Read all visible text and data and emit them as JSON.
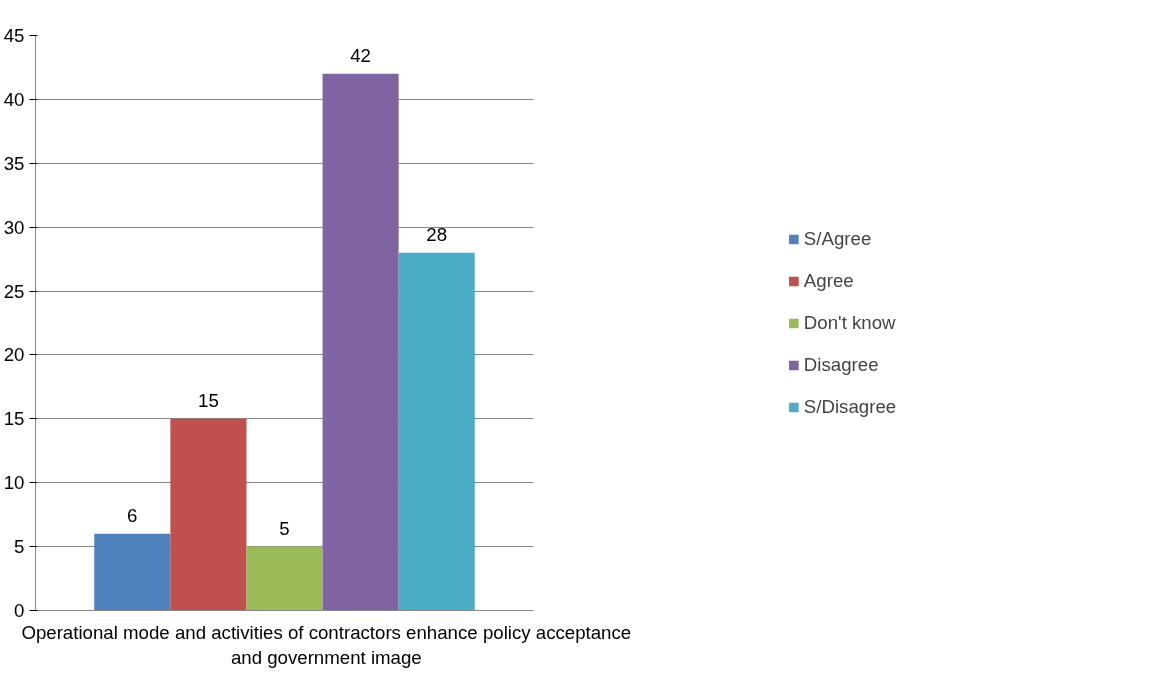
{
  "chart_data": {
    "type": "bar",
    "categories": [
      "Operational mode and activities of contractors enhance policy acceptance and government image"
    ],
    "series": [
      {
        "name": "S/Agree",
        "color": "#4f81bd",
        "values": [
          6
        ]
      },
      {
        "name": "Agree",
        "color": "#c0504d",
        "values": [
          15
        ]
      },
      {
        "name": "Don't know",
        "color": "#9bbb59",
        "values": [
          5
        ]
      },
      {
        "name": "Disagree",
        "color": "#8064a2",
        "values": [
          42
        ]
      },
      {
        "name": "S/Disagree",
        "color": "#4bacc6",
        "values": [
          28
        ]
      }
    ],
    "ylim": [
      0,
      45
    ],
    "yticks": [
      0,
      5,
      10,
      15,
      20,
      25,
      30,
      35,
      40,
      45
    ],
    "grid": "y",
    "legend": "right",
    "data_labels": true
  }
}
